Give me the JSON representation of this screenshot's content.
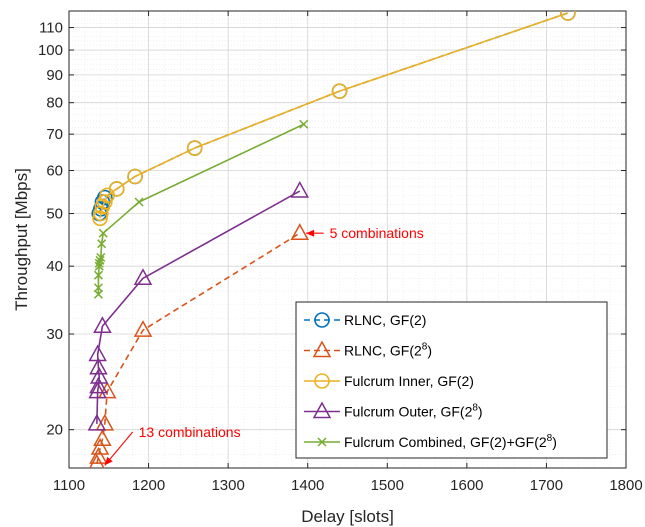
{
  "chart_data": {
    "type": "line",
    "xlabel": "Delay [slots]",
    "ylabel": "Throughput [Mbps]",
    "xlim": [
      1100,
      1800
    ],
    "ylim": [
      17,
      118
    ],
    "y_scale": "log",
    "grid": true,
    "x_ticks": [
      {
        "value": 1100,
        "label": "1100"
      },
      {
        "value": 1200,
        "label": "1200"
      },
      {
        "value": 1300,
        "label": "1300"
      },
      {
        "value": 1400,
        "label": "1400"
      },
      {
        "value": 1500,
        "label": "1500"
      },
      {
        "value": 1600,
        "label": "1600"
      },
      {
        "value": 1700,
        "label": "1700"
      },
      {
        "value": 1800,
        "label": "1800"
      }
    ],
    "y_ticks": [
      {
        "value": 20,
        "label": "20"
      },
      {
        "value": 30,
        "label": "30"
      },
      {
        "value": 40,
        "label": "40"
      },
      {
        "value": 50,
        "label": "50"
      },
      {
        "value": 60,
        "label": "60"
      },
      {
        "value": 70,
        "label": "70"
      },
      {
        "value": 80,
        "label": "80"
      },
      {
        "value": 90,
        "label": "90"
      },
      {
        "value": 100,
        "label": "100"
      },
      {
        "value": 110,
        "label": "110"
      }
    ],
    "legend_position": "bottom-right",
    "series": [
      {
        "name": "RLNC, GF(2)",
        "name_base": "RLNC, GF(2)",
        "name_sup": "",
        "name_tail": "",
        "color": "#0072BD",
        "dash": "dashed",
        "marker": "circle",
        "x": [
          1138,
          1140,
          1142,
          1145,
          1160,
          1183,
          1258,
          1440,
          1727
        ],
        "y": [
          50,
          51,
          52.5,
          53.5,
          55.5,
          58.5,
          66,
          84,
          117
        ]
      },
      {
        "name": "RLNC, GF(2^8)",
        "name_base": "RLNC, GF(2",
        "name_sup": "8",
        "name_tail": ")",
        "color": "#D95319",
        "dash": "dashed",
        "marker": "triangle",
        "x": [
          1135,
          1137,
          1139,
          1142,
          1145,
          1148,
          1193,
          1390
        ],
        "y": [
          17.3,
          17.8,
          18.5,
          19.2,
          20.5,
          23.5,
          30.5,
          46
        ]
      },
      {
        "name": "Fulcrum Inner, GF(2)",
        "name_base": "Fulcrum Inner, GF(2)",
        "name_sup": "",
        "name_tail": "",
        "color": "#EDB120",
        "dash": "solid",
        "marker": "circle",
        "x": [
          1139,
          1140,
          1142,
          1145,
          1148,
          1160,
          1183,
          1258,
          1440,
          1727
        ],
        "y": [
          49,
          50,
          51.5,
          52.5,
          54,
          55.5,
          58.5,
          66,
          84,
          117
        ]
      },
      {
        "name": "Fulcrum Outer, GF(2^8)",
        "name_base": "Fulcrum Outer, GF(2",
        "name_sup": "8",
        "name_tail": ")",
        "color": "#7E2F8E",
        "dash": "solid",
        "marker": "triangle",
        "x": [
          1135,
          1136,
          1137,
          1138,
          1137,
          1136,
          1142,
          1193,
          1390
        ],
        "y": [
          20.5,
          23.5,
          24,
          25,
          26,
          27.5,
          31,
          38,
          55
        ]
      },
      {
        "name": "Fulcrum Combined, GF(2)+GF(2^8)",
        "name_base": "Fulcrum Combined, GF(2)+GF(2",
        "name_sup": "8",
        "name_tail": ")",
        "color": "#77AC30",
        "dash": "solid",
        "marker": "x",
        "x": [
          1137,
          1137,
          1137,
          1138,
          1138,
          1139,
          1140,
          1141,
          1143,
          1188,
          1395
        ],
        "y": [
          35.5,
          36.5,
          38.5,
          40,
          40.5,
          41,
          41.5,
          44,
          46,
          52.5,
          73
        ]
      }
    ],
    "annotations": [
      {
        "text": "5 combinations",
        "color": "#FF0000",
        "point": [
          1398,
          46
        ],
        "text_pos": [
          1425,
          46
        ]
      },
      {
        "text": "13 combinations",
        "color": "#FF0000",
        "point": [
          1145,
          17.2
        ],
        "text_pos": [
          1185,
          19.8
        ]
      }
    ]
  }
}
